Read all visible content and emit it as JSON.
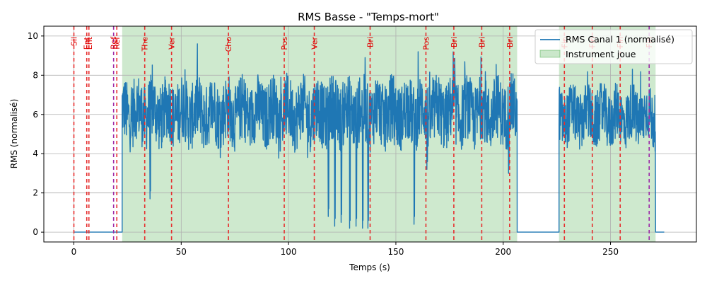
{
  "chart_data": {
    "type": "line",
    "title": "RMS Basse - \"Temps-mort\"",
    "xlabel": "Temps (s)",
    "ylabel": "RMS (normalisé)",
    "xlim": [
      -14,
      290
    ],
    "ylim": [
      -0.5,
      10.5
    ],
    "xticks": [
      0,
      50,
      100,
      150,
      200,
      250
    ],
    "yticks": [
      0,
      2,
      4,
      6,
      8,
      10
    ],
    "grid": true,
    "legend_position": "top-right",
    "colors": {
      "line": "#1f77b4",
      "span": "#2ca02c",
      "marker_red": "#e62e2e",
      "marker_purple": "#9d2aa8",
      "marker_text": "#e00000"
    },
    "series": [
      {
        "name": "RMS Canal 1 (normalisé)",
        "segments": [
          {
            "kind": "flat",
            "x": [
              0,
              22.5
            ],
            "y": 0.0
          },
          {
            "kind": "active",
            "x": [
              22.5,
              206.5
            ],
            "mean": 6.1,
            "amp": 1.4
          },
          {
            "kind": "flat",
            "x": [
              206.5,
              226
            ],
            "y": 0.0
          },
          {
            "kind": "active",
            "x": [
              226,
              271
            ],
            "mean": 5.9,
            "amp": 1.2
          },
          {
            "kind": "flat",
            "x": [
              271,
              275
            ],
            "y": 0.0
          }
        ],
        "dips": [
          {
            "x": 35.5,
            "y": 1.7
          },
          {
            "x": 118.5,
            "y": 0.8
          },
          {
            "x": 121.5,
            "y": 0.3
          },
          {
            "x": 124.5,
            "y": 0.5
          },
          {
            "x": 128.5,
            "y": 0.2
          },
          {
            "x": 131.5,
            "y": 0.3
          },
          {
            "x": 134.5,
            "y": 0.2
          },
          {
            "x": 137,
            "y": 0.2
          },
          {
            "x": 158.5,
            "y": 0.4
          },
          {
            "x": 164.5,
            "y": 3.2
          },
          {
            "x": 202.5,
            "y": 3.0
          }
        ]
      }
    ],
    "spans": [
      {
        "name": "Instrument joue",
        "x": [
          22.5,
          206.5
        ]
      },
      {
        "x": [
          226,
          271
        ]
      }
    ],
    "markers": [
      {
        "x": 0,
        "label": "Sil",
        "color": "red"
      },
      {
        "x": 6,
        "label": "Ent",
        "color": "red"
      },
      {
        "x": 7,
        "label": "Ent",
        "color": "red"
      },
      {
        "x": 18.5,
        "label": "Ref",
        "color": "purple"
      },
      {
        "x": 20,
        "label": "Ref",
        "color": "red"
      },
      {
        "x": 33,
        "label": "The",
        "color": "red"
      },
      {
        "x": 45.5,
        "label": "Ver",
        "color": "red"
      },
      {
        "x": 72,
        "label": "Cho",
        "color": "red"
      },
      {
        "x": 98,
        "label": "Pos",
        "color": "red"
      },
      {
        "x": 112,
        "label": "Ver",
        "color": "red"
      },
      {
        "x": 138,
        "label": "Bri",
        "color": "red"
      },
      {
        "x": 164,
        "label": "Pos",
        "color": "red"
      },
      {
        "x": 177,
        "label": "Bri",
        "color": "red"
      },
      {
        "x": 190,
        "label": "Bri",
        "color": "red"
      },
      {
        "x": 203,
        "label": "Bri",
        "color": "red"
      },
      {
        "x": 228.5,
        "label": "Fin",
        "color": "red"
      },
      {
        "x": 241.5,
        "label": "Fin",
        "color": "red"
      },
      {
        "x": 254.5,
        "label": "Fin",
        "color": "red"
      },
      {
        "x": 268,
        "label": "Fin",
        "color": "purple"
      }
    ]
  }
}
